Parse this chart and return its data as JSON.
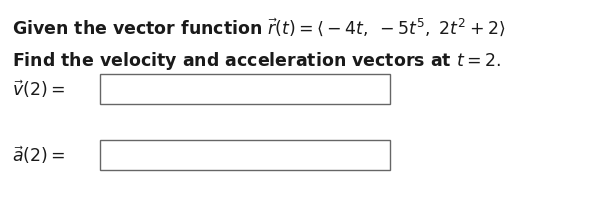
{
  "background_color": "#ffffff",
  "text_color": "#1a1a1a",
  "line1": "Given the vector function $\\vec{r}(t) = \\langle -4t,\\; -5t^5,\\; 2t^2+2 \\rangle$",
  "line2": "Find the velocity and acceleration vectors at $t = 2.$",
  "label_v": "$\\vec{v}(2) =$",
  "label_a": "$\\vec{a}(2) =$",
  "font_size": 12.5,
  "fig_width": 6.04,
  "fig_height": 2.12,
  "dpi": 100
}
